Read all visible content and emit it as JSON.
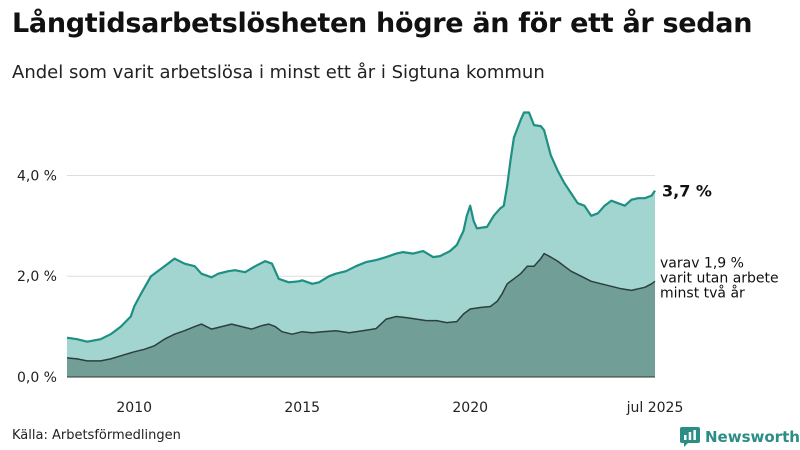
{
  "header": {
    "title": "Långtidsarbetslösheten högre än för ett år sedan",
    "subtitle": "Andel som varit arbetslösa i minst ett år i Sigtuna kommun"
  },
  "footer": {
    "source": "Källa: Arbetsförmedlingen",
    "brand": "Newsworthy"
  },
  "colors": {
    "total_fill": "#a2d5cf",
    "total_line": "#1e8f83",
    "long_fill": "#719f98",
    "long_line": "#2d3f3c",
    "grid": "#dddddd",
    "brand": "#2c8c86"
  },
  "chart_data": {
    "type": "area",
    "title": "Långtidsarbetslösheten högre än för ett år sedan",
    "subtitle": "Andel som varit arbetslösa i minst ett år i Sigtuna kommun",
    "xlabel": "",
    "ylabel": "",
    "ylim": [
      0,
      5.3
    ],
    "xlim": [
      2008.0,
      2025.5
    ],
    "y_ticks": [
      {
        "v": 0,
        "label": "0,0 %"
      },
      {
        "v": 2,
        "label": "2,0 %"
      },
      {
        "v": 4,
        "label": "4,0 %"
      }
    ],
    "x_ticks": [
      {
        "v": 2010,
        "label": "2010"
      },
      {
        "v": 2015,
        "label": "2015"
      },
      {
        "v": 2020,
        "label": "2020"
      },
      {
        "v": 2025.5,
        "label": "jul 2025"
      }
    ],
    "series": [
      {
        "name": "Minst ett år",
        "end_label": "3,7 %",
        "points": [
          [
            2008.0,
            0.78
          ],
          [
            2008.3,
            0.75
          ],
          [
            2008.6,
            0.7
          ],
          [
            2009.0,
            0.75
          ],
          [
            2009.3,
            0.85
          ],
          [
            2009.6,
            1.0
          ],
          [
            2009.9,
            1.2
          ],
          [
            2010.0,
            1.4
          ],
          [
            2010.2,
            1.65
          ],
          [
            2010.5,
            2.0
          ],
          [
            2010.8,
            2.15
          ],
          [
            2011.0,
            2.25
          ],
          [
            2011.2,
            2.35
          ],
          [
            2011.5,
            2.25
          ],
          [
            2011.8,
            2.2
          ],
          [
            2012.0,
            2.05
          ],
          [
            2012.3,
            1.98
          ],
          [
            2012.5,
            2.05
          ],
          [
            2012.8,
            2.1
          ],
          [
            2013.0,
            2.12
          ],
          [
            2013.3,
            2.08
          ],
          [
            2013.6,
            2.2
          ],
          [
            2013.9,
            2.3
          ],
          [
            2014.1,
            2.25
          ],
          [
            2014.3,
            1.95
          ],
          [
            2014.6,
            1.88
          ],
          [
            2014.9,
            1.9
          ],
          [
            2015.0,
            1.92
          ],
          [
            2015.3,
            1.85
          ],
          [
            2015.5,
            1.88
          ],
          [
            2015.8,
            2.0
          ],
          [
            2016.0,
            2.05
          ],
          [
            2016.3,
            2.1
          ],
          [
            2016.6,
            2.2
          ],
          [
            2016.9,
            2.28
          ],
          [
            2017.2,
            2.32
          ],
          [
            2017.5,
            2.38
          ],
          [
            2017.8,
            2.45
          ],
          [
            2018.0,
            2.48
          ],
          [
            2018.3,
            2.45
          ],
          [
            2018.6,
            2.5
          ],
          [
            2018.9,
            2.38
          ],
          [
            2019.1,
            2.4
          ],
          [
            2019.4,
            2.5
          ],
          [
            2019.6,
            2.62
          ],
          [
            2019.8,
            2.9
          ],
          [
            2019.9,
            3.2
          ],
          [
            2020.0,
            3.4
          ],
          [
            2020.1,
            3.1
          ],
          [
            2020.2,
            2.95
          ],
          [
            2020.5,
            2.98
          ],
          [
            2020.7,
            3.2
          ],
          [
            2020.9,
            3.35
          ],
          [
            2021.0,
            3.4
          ],
          [
            2021.1,
            3.8
          ],
          [
            2021.2,
            4.3
          ],
          [
            2021.3,
            4.75
          ],
          [
            2021.5,
            5.1
          ],
          [
            2021.6,
            5.25
          ],
          [
            2021.75,
            5.25
          ],
          [
            2021.9,
            5.0
          ],
          [
            2022.1,
            4.98
          ],
          [
            2022.2,
            4.9
          ],
          [
            2022.4,
            4.4
          ],
          [
            2022.6,
            4.1
          ],
          [
            2022.8,
            3.85
          ],
          [
            2023.0,
            3.65
          ],
          [
            2023.2,
            3.45
          ],
          [
            2023.4,
            3.4
          ],
          [
            2023.6,
            3.2
          ],
          [
            2023.8,
            3.25
          ],
          [
            2024.0,
            3.4
          ],
          [
            2024.2,
            3.5
          ],
          [
            2024.4,
            3.45
          ],
          [
            2024.6,
            3.4
          ],
          [
            2024.8,
            3.52
          ],
          [
            2025.0,
            3.55
          ],
          [
            2025.2,
            3.55
          ],
          [
            2025.4,
            3.6
          ],
          [
            2025.5,
            3.7
          ]
        ]
      },
      {
        "name": "varav minst två år",
        "end_label_lines": [
          "varav 1,9 %",
          "varit utan arbete",
          "minst två år"
        ],
        "points": [
          [
            2008.0,
            0.38
          ],
          [
            2008.3,
            0.36
          ],
          [
            2008.6,
            0.32
          ],
          [
            2009.0,
            0.32
          ],
          [
            2009.3,
            0.36
          ],
          [
            2009.6,
            0.42
          ],
          [
            2010.0,
            0.5
          ],
          [
            2010.3,
            0.55
          ],
          [
            2010.6,
            0.62
          ],
          [
            2010.9,
            0.75
          ],
          [
            2011.2,
            0.85
          ],
          [
            2011.5,
            0.92
          ],
          [
            2011.8,
            1.0
          ],
          [
            2012.0,
            1.05
          ],
          [
            2012.3,
            0.95
          ],
          [
            2012.6,
            1.0
          ],
          [
            2012.9,
            1.05
          ],
          [
            2013.2,
            1.0
          ],
          [
            2013.5,
            0.95
          ],
          [
            2013.8,
            1.02
          ],
          [
            2014.0,
            1.05
          ],
          [
            2014.2,
            1.0
          ],
          [
            2014.4,
            0.9
          ],
          [
            2014.7,
            0.85
          ],
          [
            2015.0,
            0.9
          ],
          [
            2015.3,
            0.88
          ],
          [
            2015.6,
            0.9
          ],
          [
            2016.0,
            0.92
          ],
          [
            2016.4,
            0.88
          ],
          [
            2016.8,
            0.92
          ],
          [
            2017.2,
            0.96
          ],
          [
            2017.5,
            1.15
          ],
          [
            2017.8,
            1.2
          ],
          [
            2018.1,
            1.18
          ],
          [
            2018.4,
            1.15
          ],
          [
            2018.7,
            1.12
          ],
          [
            2019.0,
            1.12
          ],
          [
            2019.3,
            1.08
          ],
          [
            2019.6,
            1.1
          ],
          [
            2019.8,
            1.25
          ],
          [
            2020.0,
            1.35
          ],
          [
            2020.3,
            1.38
          ],
          [
            2020.6,
            1.4
          ],
          [
            2020.8,
            1.5
          ],
          [
            2020.95,
            1.65
          ],
          [
            2021.1,
            1.85
          ],
          [
            2021.3,
            1.95
          ],
          [
            2021.5,
            2.05
          ],
          [
            2021.7,
            2.2
          ],
          [
            2021.9,
            2.2
          ],
          [
            2022.1,
            2.35
          ],
          [
            2022.2,
            2.45
          ],
          [
            2022.4,
            2.38
          ],
          [
            2022.6,
            2.3
          ],
          [
            2022.8,
            2.2
          ],
          [
            2023.0,
            2.1
          ],
          [
            2023.3,
            2.0
          ],
          [
            2023.6,
            1.9
          ],
          [
            2023.9,
            1.85
          ],
          [
            2024.2,
            1.8
          ],
          [
            2024.5,
            1.75
          ],
          [
            2024.8,
            1.72
          ],
          [
            2025.0,
            1.75
          ],
          [
            2025.2,
            1.78
          ],
          [
            2025.4,
            1.85
          ],
          [
            2025.5,
            1.9
          ]
        ]
      }
    ]
  }
}
